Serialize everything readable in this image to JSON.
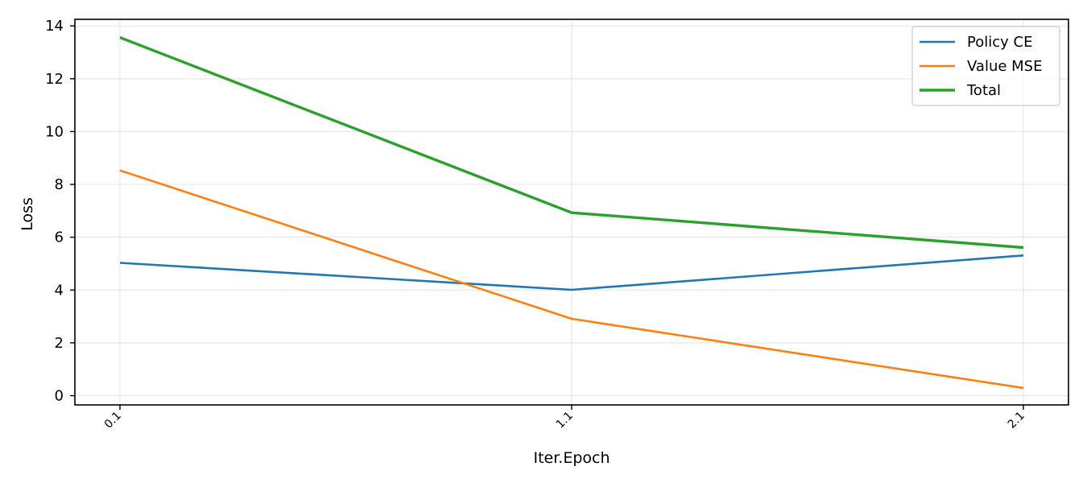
{
  "chart_data": {
    "type": "line",
    "title": "",
    "xlabel": "Iter.Epoch",
    "ylabel": "Loss",
    "categories": [
      "0.1",
      "1.1",
      "2.1"
    ],
    "ylim": [
      -0.35,
      14.25
    ],
    "yticks": [
      0,
      2,
      4,
      6,
      8,
      10,
      12,
      14
    ],
    "grid": true,
    "legend_position": "top-right",
    "series": [
      {
        "name": "Policy CE",
        "color": "#1f77b4",
        "values": [
          5.03,
          4.01,
          5.31
        ]
      },
      {
        "name": "Value MSE",
        "color": "#ff7f0e",
        "values": [
          8.53,
          2.91,
          0.29
        ]
      },
      {
        "name": "Total",
        "color": "#2ca02c",
        "values": [
          13.56,
          6.93,
          5.61
        ]
      }
    ]
  }
}
